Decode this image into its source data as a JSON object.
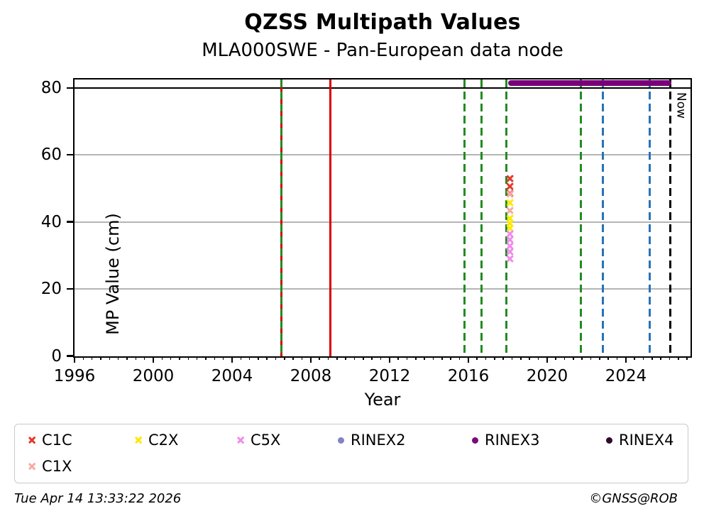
{
  "header": {
    "title": "QZSS Multipath Values",
    "subtitle": "MLA000SWE - Pan-European data node"
  },
  "chart_data": {
    "type": "scatter",
    "title": "QZSS Multipath Values",
    "subtitle": "MLA000SWE - Pan-European data node",
    "xlabel": "Year",
    "ylabel": "MP Value (cm)",
    "xlim": [
      1996,
      2027.28
    ],
    "ylim": [
      0,
      82.6
    ],
    "x_major_ticks": [
      1996,
      2000,
      2004,
      2008,
      2012,
      2016,
      2020,
      2024
    ],
    "x_minor_interval_years": 0.4444,
    "y_ticks": [
      0,
      20,
      40,
      60,
      80
    ],
    "gridlines_y": [
      20,
      40,
      60
    ],
    "threshold_line_y": 80,
    "grid": "horizontal-only",
    "now": {
      "year": 2026.25,
      "label": "Now",
      "color": "#000000",
      "style": "dashed"
    },
    "vlines": [
      {
        "year": 2006.51,
        "color": "#d60000",
        "style": "solid"
      },
      {
        "year": 2006.51,
        "color": "#228B22",
        "style": "dashed"
      },
      {
        "year": 2009.0,
        "color": "#d60000",
        "style": "solid"
      },
      {
        "year": 2015.79,
        "color": "#228B22",
        "style": "dashed"
      },
      {
        "year": 2016.66,
        "color": "#228B22",
        "style": "dashed"
      },
      {
        "year": 2017.92,
        "color": "#228B22",
        "style": "dashed"
      },
      {
        "year": 2021.7,
        "color": "#228B22",
        "style": "dashed"
      },
      {
        "year": 2022.83,
        "color": "#2673b8",
        "style": "dashed"
      },
      {
        "year": 2025.2,
        "color": "#2673b8",
        "style": "dashed"
      },
      {
        "year": 2026.25,
        "color": "#000000",
        "style": "dashed"
      }
    ],
    "rinex3_bar": {
      "series": "RINEX3",
      "start_year": 2018.03,
      "end_year": 2026.3,
      "value": 81.4,
      "color": "#780078"
    },
    "points": [
      {
        "series": "C1C",
        "year": 2018.1,
        "value": 52.9
      },
      {
        "series": "C1C",
        "year": 2018.1,
        "value": 50.6
      },
      {
        "series": "C1C",
        "year": 2018.1,
        "value": 48.6
      },
      {
        "series": "C1X",
        "year": 2018.1,
        "value": 48.2
      },
      {
        "series": "C1X",
        "year": 2018.1,
        "value": 43.5
      },
      {
        "series": "C2X",
        "year": 2018.1,
        "value": 45.7
      },
      {
        "series": "C2X",
        "year": 2018.1,
        "value": 41.0
      },
      {
        "series": "C2X",
        "year": 2018.1,
        "value": 39.6
      },
      {
        "series": "C2X",
        "year": 2018.1,
        "value": 38.1
      },
      {
        "series": "C5X",
        "year": 2018.1,
        "value": 36.5
      },
      {
        "series": "C5X",
        "year": 2018.1,
        "value": 34.8
      },
      {
        "series": "C5X",
        "year": 2018.1,
        "value": 32.9
      },
      {
        "series": "C5X",
        "year": 2018.1,
        "value": 31.2
      },
      {
        "series": "C5X",
        "year": 2018.1,
        "value": 29.1
      }
    ],
    "legend": [
      {
        "label": "C1C",
        "marker": "x",
        "color": "#e33a2c"
      },
      {
        "label": "C2X",
        "marker": "x",
        "color": "#fde800"
      },
      {
        "label": "C5X",
        "marker": "x",
        "color": "#ef8dea"
      },
      {
        "label": "RINEX2",
        "marker": "dot",
        "color": "#8282c6"
      },
      {
        "label": "RINEX3",
        "marker": "dot",
        "color": "#7a0b7a"
      },
      {
        "label": "RINEX4",
        "marker": "dot",
        "color": "#2b0b2b"
      }
    ],
    "legend_row2": [
      {
        "label": "C1X",
        "marker": "x",
        "color": "#f6aaa4"
      }
    ],
    "legend_position": "bottom"
  },
  "footer": {
    "timestamp": "Tue Apr 14 13:33:22 2026",
    "credit": "©GNSS@ROB"
  }
}
